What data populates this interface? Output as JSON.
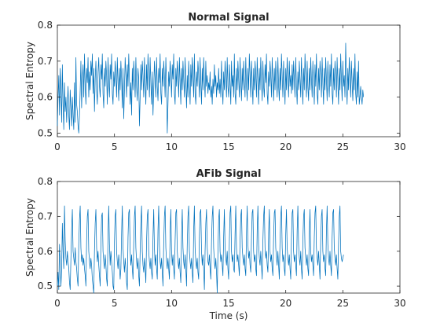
{
  "chart_data": [
    {
      "type": "line",
      "title": "Normal Signal",
      "xlabel": "",
      "ylabel": "Spectral Entropy",
      "xlim": [
        0,
        30
      ],
      "ylim": [
        0.49,
        0.8
      ],
      "xticks": [
        0,
        5,
        10,
        15,
        20,
        25,
        30
      ],
      "yticks": [
        0.5,
        0.6,
        0.7,
        0.8
      ],
      "xtick_labels": [
        "0",
        "5",
        "10",
        "15",
        "20",
        "25",
        "30"
      ],
      "ytick_labels": [
        "0.5",
        "0.6",
        "0.7",
        "0.8"
      ],
      "grid": false,
      "series_color": "#0072bd",
      "x_step": 0.0625,
      "y": [
        0.52,
        0.6,
        0.66,
        0.55,
        0.68,
        0.62,
        0.53,
        0.69,
        0.58,
        0.51,
        0.64,
        0.56,
        0.6,
        0.53,
        0.58,
        0.63,
        0.55,
        0.51,
        0.62,
        0.57,
        0.52,
        0.6,
        0.55,
        0.51,
        0.64,
        0.53,
        0.71,
        0.58,
        0.56,
        0.52,
        0.5,
        0.55,
        0.62,
        0.7,
        0.57,
        0.65,
        0.69,
        0.6,
        0.72,
        0.63,
        0.58,
        0.68,
        0.64,
        0.71,
        0.6,
        0.67,
        0.62,
        0.7,
        0.66,
        0.72,
        0.61,
        0.68,
        0.56,
        0.65,
        0.7,
        0.62,
        0.58,
        0.67,
        0.71,
        0.63,
        0.6,
        0.69,
        0.65,
        0.72,
        0.61,
        0.57,
        0.68,
        0.63,
        0.7,
        0.66,
        0.58,
        0.71,
        0.64,
        0.6,
        0.69,
        0.65,
        0.72,
        0.61,
        0.58,
        0.67,
        0.63,
        0.7,
        0.66,
        0.6,
        0.71,
        0.64,
        0.59,
        0.68,
        0.62,
        0.7,
        0.65,
        0.57,
        0.68,
        0.54,
        0.62,
        0.71,
        0.66,
        0.6,
        0.69,
        0.63,
        0.72,
        0.65,
        0.58,
        0.64,
        0.55,
        0.68,
        0.62,
        0.7,
        0.66,
        0.6,
        0.71,
        0.63,
        0.59,
        0.68,
        0.65,
        0.52,
        0.6,
        0.69,
        0.62,
        0.7,
        0.66,
        0.6,
        0.71,
        0.64,
        0.58,
        0.69,
        0.62,
        0.72,
        0.66,
        0.6,
        0.71,
        0.64,
        0.58,
        0.67,
        0.55,
        0.62,
        0.7,
        0.65,
        0.6,
        0.71,
        0.63,
        0.59,
        0.68,
        0.64,
        0.72,
        0.61,
        0.58,
        0.68,
        0.63,
        0.7,
        0.66,
        0.6,
        0.71,
        0.64,
        0.5,
        0.58,
        0.67,
        0.63,
        0.7,
        0.66,
        0.6,
        0.69,
        0.65,
        0.72,
        0.61,
        0.58,
        0.68,
        0.63,
        0.7,
        0.66,
        0.6,
        0.71,
        0.64,
        0.58,
        0.68,
        0.62,
        0.7,
        0.65,
        0.6,
        0.71,
        0.64,
        0.57,
        0.66,
        0.6,
        0.7,
        0.64,
        0.58,
        0.69,
        0.63,
        0.71,
        0.66,
        0.6,
        0.72,
        0.61,
        0.58,
        0.67,
        0.63,
        0.7,
        0.66,
        0.6,
        0.71,
        0.64,
        0.58,
        0.68,
        0.62,
        0.71,
        0.65,
        0.6,
        0.7,
        0.63,
        0.66,
        0.61,
        0.64,
        0.62,
        0.67,
        0.6,
        0.63,
        0.58,
        0.65,
        0.61,
        0.69,
        0.63,
        0.66,
        0.6,
        0.64,
        0.62,
        0.68,
        0.61,
        0.65,
        0.6,
        0.7,
        0.63,
        0.58,
        0.67,
        0.62,
        0.7,
        0.65,
        0.6,
        0.71,
        0.63,
        0.6,
        0.69,
        0.64,
        0.58,
        0.7,
        0.63,
        0.66,
        0.6,
        0.72,
        0.61,
        0.58,
        0.68,
        0.62,
        0.7,
        0.65,
        0.6,
        0.71,
        0.64,
        0.59,
        0.68,
        0.62,
        0.7,
        0.65,
        0.6,
        0.71,
        0.63,
        0.59,
        0.68,
        0.62,
        0.72,
        0.66,
        0.6,
        0.7,
        0.64,
        0.58,
        0.68,
        0.62,
        0.7,
        0.66,
        0.6,
        0.71,
        0.64,
        0.58,
        0.68,
        0.62,
        0.71,
        0.65,
        0.59,
        0.7,
        0.63,
        0.6,
        0.69,
        0.64,
        0.72,
        0.61,
        0.58,
        0.67,
        0.63,
        0.7,
        0.66,
        0.6,
        0.71,
        0.64,
        0.59,
        0.68,
        0.62,
        0.7,
        0.65,
        0.6,
        0.71,
        0.63,
        0.59,
        0.68,
        0.62,
        0.72,
        0.66,
        0.6,
        0.7,
        0.64,
        0.58,
        0.68,
        0.62,
        0.71,
        0.65,
        0.6,
        0.7,
        0.63,
        0.66,
        0.61,
        0.69,
        0.62,
        0.7,
        0.65,
        0.6,
        0.71,
        0.63,
        0.58,
        0.67,
        0.62,
        0.7,
        0.65,
        0.6,
        0.71,
        0.64,
        0.58,
        0.68,
        0.62,
        0.72,
        0.65,
        0.6,
        0.7,
        0.63,
        0.59,
        0.68,
        0.62,
        0.71,
        0.65,
        0.6,
        0.7,
        0.64,
        0.58,
        0.69,
        0.63,
        0.72,
        0.61,
        0.58,
        0.68,
        0.62,
        0.7,
        0.66,
        0.6,
        0.71,
        0.64,
        0.58,
        0.68,
        0.62,
        0.71,
        0.65,
        0.59,
        0.7,
        0.64,
        0.6,
        0.69,
        0.63,
        0.72,
        0.61,
        0.58,
        0.68,
        0.62,
        0.7,
        0.66,
        0.6,
        0.71,
        0.64,
        0.58,
        0.68,
        0.62,
        0.72,
        0.65,
        0.59,
        0.7,
        0.63,
        0.66,
        0.6,
        0.75,
        0.64,
        0.58,
        0.68,
        0.62,
        0.71,
        0.65,
        0.6,
        0.7,
        0.64,
        0.59,
        0.68,
        0.62,
        0.72,
        0.61,
        0.58,
        0.67,
        0.6,
        0.7,
        0.58,
        0.6,
        0.63,
        0.6,
        0.58,
        0.62,
        0.6
      ]
    },
    {
      "type": "line",
      "title": "AFib Signal",
      "xlabel": "Time (s)",
      "ylabel": "Spectral Entropy",
      "xlim": [
        0,
        30
      ],
      "ylim": [
        0.48,
        0.8
      ],
      "xticks": [
        0,
        5,
        10,
        15,
        20,
        25,
        30
      ],
      "yticks": [
        0.5,
        0.6,
        0.7,
        0.8
      ],
      "xtick_labels": [
        "0",
        "5",
        "10",
        "15",
        "20",
        "25",
        "30"
      ],
      "ytick_labels": [
        "0.5",
        "0.6",
        "0.7",
        "0.8"
      ],
      "grid": false,
      "series_color": "#0072bd",
      "x_step": 0.0625,
      "y": [
        0.5,
        0.54,
        0.49,
        0.62,
        0.57,
        0.5,
        0.55,
        0.68,
        0.6,
        0.55,
        0.73,
        0.63,
        0.58,
        0.56,
        0.6,
        0.57,
        0.55,
        0.51,
        0.49,
        0.58,
        0.66,
        0.72,
        0.6,
        0.58,
        0.56,
        0.61,
        0.57,
        0.55,
        0.52,
        0.5,
        0.62,
        0.69,
        0.73,
        0.61,
        0.57,
        0.59,
        0.56,
        0.58,
        0.55,
        0.53,
        0.5,
        0.63,
        0.7,
        0.72,
        0.6,
        0.57,
        0.55,
        0.58,
        0.56,
        0.52,
        0.5,
        0.48,
        0.6,
        0.68,
        0.72,
        0.61,
        0.57,
        0.6,
        0.56,
        0.53,
        0.5,
        0.62,
        0.7,
        0.71,
        0.6,
        0.57,
        0.55,
        0.59,
        0.56,
        0.52,
        0.5,
        0.65,
        0.73,
        0.62,
        0.56,
        0.6,
        0.57,
        0.54,
        0.5,
        0.49,
        0.63,
        0.7,
        0.72,
        0.6,
        0.57,
        0.55,
        0.59,
        0.56,
        0.52,
        0.55,
        0.65,
        0.73,
        0.61,
        0.57,
        0.54,
        0.58,
        0.55,
        0.51,
        0.49,
        0.64,
        0.71,
        0.72,
        0.6,
        0.56,
        0.59,
        0.55,
        0.52,
        0.62,
        0.7,
        0.73,
        0.61,
        0.57,
        0.55,
        0.58,
        0.53,
        0.5,
        0.6,
        0.68,
        0.73,
        0.6,
        0.56,
        0.54,
        0.58,
        0.55,
        0.51,
        0.63,
        0.7,
        0.72,
        0.6,
        0.57,
        0.55,
        0.58,
        0.54,
        0.52,
        0.64,
        0.72,
        0.61,
        0.56,
        0.59,
        0.55,
        0.52,
        0.66,
        0.73,
        0.62,
        0.57,
        0.55,
        0.58,
        0.54,
        0.5,
        0.62,
        0.7,
        0.73,
        0.61,
        0.57,
        0.55,
        0.58,
        0.55,
        0.52,
        0.65,
        0.72,
        0.6,
        0.56,
        0.59,
        0.55,
        0.52,
        0.63,
        0.71,
        0.72,
        0.6,
        0.57,
        0.55,
        0.58,
        0.54,
        0.51,
        0.64,
        0.72,
        0.61,
        0.57,
        0.55,
        0.59,
        0.55,
        0.5,
        0.62,
        0.7,
        0.73,
        0.6,
        0.57,
        0.55,
        0.58,
        0.54,
        0.51,
        0.66,
        0.73,
        0.61,
        0.57,
        0.55,
        0.58,
        0.54,
        0.52,
        0.64,
        0.71,
        0.72,
        0.6,
        0.56,
        0.59,
        0.55,
        0.49,
        0.6,
        0.68,
        0.72,
        0.61,
        0.57,
        0.56,
        0.59,
        0.55,
        0.52,
        0.63,
        0.7,
        0.73,
        0.61,
        0.57,
        0.55,
        0.58,
        0.54,
        0.48,
        0.6,
        0.69,
        0.72,
        0.6,
        0.57,
        0.59,
        0.56,
        0.53,
        0.64,
        0.72,
        0.61,
        0.58,
        0.56,
        0.6,
        0.55,
        0.52,
        0.63,
        0.71,
        0.73,
        0.6,
        0.57,
        0.59,
        0.55,
        0.54,
        0.65,
        0.73,
        0.61,
        0.57,
        0.59,
        0.56,
        0.53,
        0.63,
        0.7,
        0.72,
        0.61,
        0.58,
        0.56,
        0.59,
        0.55,
        0.53,
        0.65,
        0.73,
        0.62,
        0.58,
        0.6,
        0.56,
        0.54,
        0.64,
        0.71,
        0.72,
        0.6,
        0.57,
        0.59,
        0.55,
        0.53,
        0.66,
        0.73,
        0.62,
        0.58,
        0.56,
        0.6,
        0.56,
        0.52,
        0.63,
        0.7,
        0.73,
        0.61,
        0.58,
        0.6,
        0.56,
        0.54,
        0.65,
        0.72,
        0.6,
        0.57,
        0.59,
        0.55,
        0.53,
        0.64,
        0.71,
        0.72,
        0.61,
        0.58,
        0.56,
        0.6,
        0.56,
        0.52,
        0.63,
        0.7,
        0.73,
        0.61,
        0.57,
        0.59,
        0.55,
        0.53,
        0.65,
        0.72,
        0.61,
        0.58,
        0.56,
        0.59,
        0.55,
        0.52,
        0.64,
        0.71,
        0.72,
        0.6,
        0.57,
        0.59,
        0.56,
        0.53,
        0.66,
        0.73,
        0.62,
        0.58,
        0.56,
        0.6,
        0.55,
        0.52,
        0.63,
        0.7,
        0.72,
        0.61,
        0.58,
        0.56,
        0.59,
        0.55,
        0.53,
        0.65,
        0.72,
        0.6,
        0.57,
        0.59,
        0.56,
        0.53,
        0.64,
        0.71,
        0.73,
        0.61,
        0.58,
        0.56,
        0.6,
        0.56,
        0.52,
        0.63,
        0.7,
        0.72,
        0.6,
        0.57,
        0.59,
        0.55,
        0.53,
        0.66,
        0.73,
        0.62,
        0.58,
        0.56,
        0.6,
        0.56,
        0.53,
        0.64,
        0.71,
        0.72,
        0.61,
        0.58,
        0.56,
        0.59,
        0.55,
        0.52,
        0.62,
        0.7,
        0.73,
        0.6,
        0.58,
        0.57,
        0.58,
        0.59
      ]
    }
  ]
}
